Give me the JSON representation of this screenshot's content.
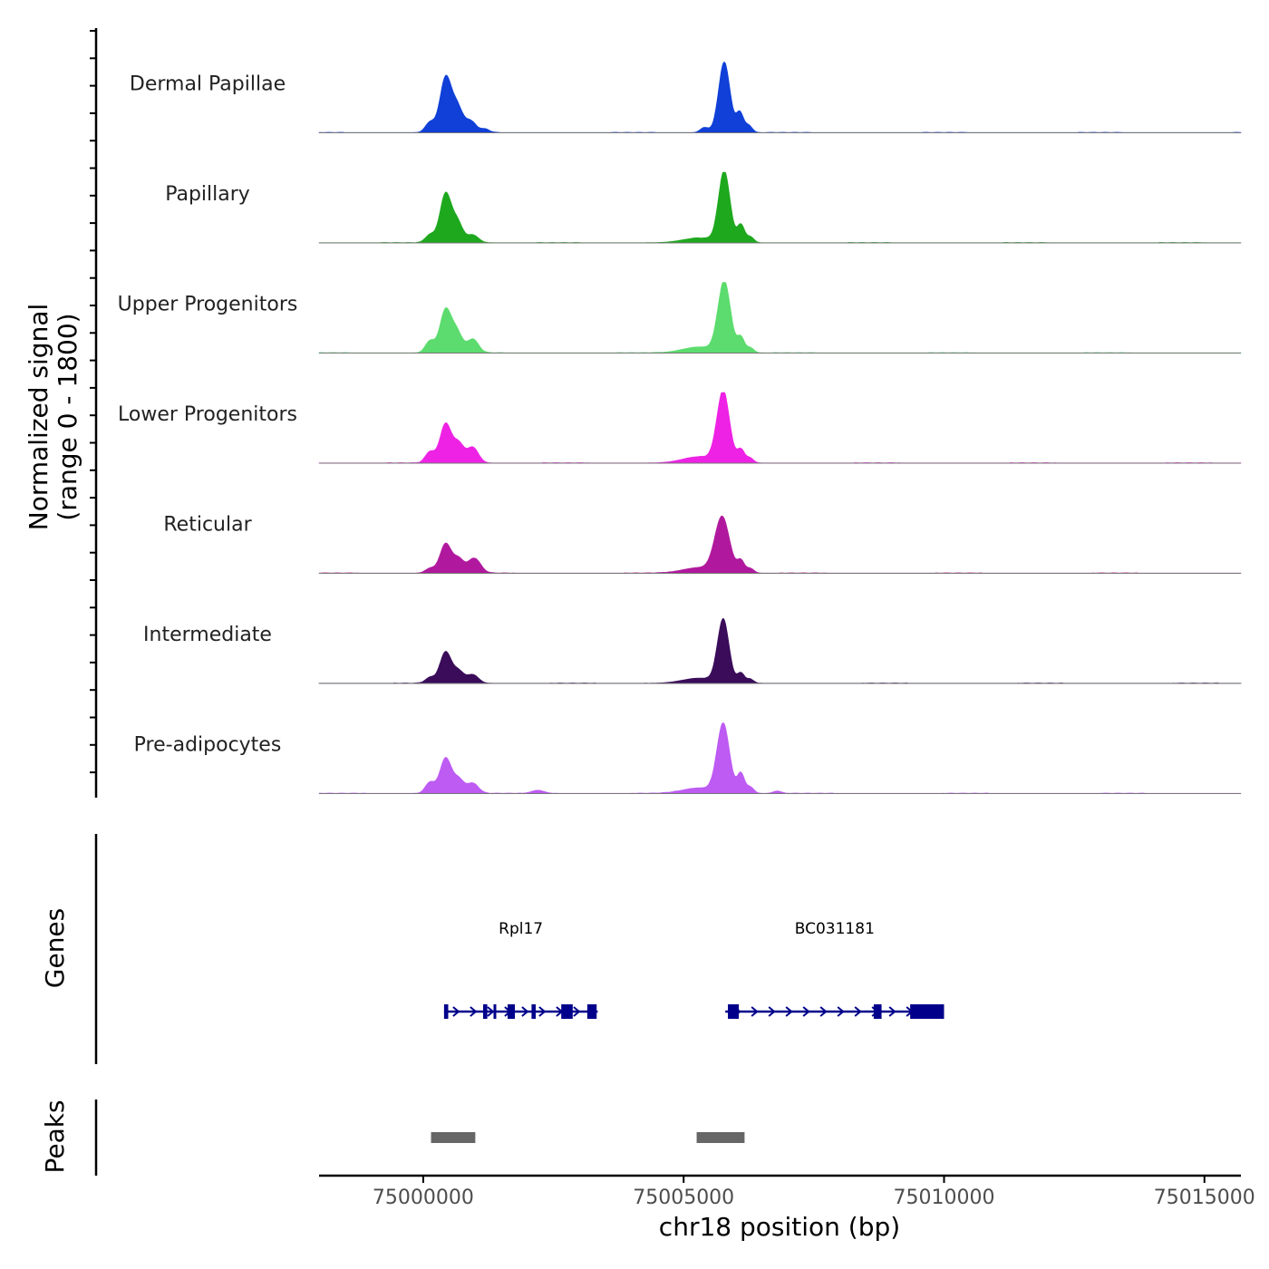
{
  "chart_data": {
    "type": "area",
    "title": "",
    "chromosome": "chr18",
    "xlabel": "chr18 position (bp)",
    "ylabel": "Normalized signal",
    "ylabel_sub": "(range 0 - 1800)",
    "ylim": [
      0,
      1800
    ],
    "xlim": [
      74998000,
      75015700
    ],
    "x_ticks": [
      {
        "value": 75000000,
        "label": "75000000"
      },
      {
        "value": 75005000,
        "label": "75005000"
      },
      {
        "value": 75010000,
        "label": "75010000"
      },
      {
        "value": 75015000,
        "label": "75015000"
      }
    ],
    "series": [
      {
        "name": "Dermal Papillae",
        "color": "#1040d8",
        "peaks": [
          [
            75000130,
            90,
            260
          ],
          [
            75000430,
            110,
            1400
          ],
          [
            75000650,
            100,
            600
          ],
          [
            75000900,
            120,
            300
          ],
          [
            75001200,
            80,
            80
          ],
          [
            75005400,
            80,
            130
          ],
          [
            75005780,
            110,
            1800
          ],
          [
            75006080,
            70,
            500
          ],
          [
            75006250,
            70,
            180
          ]
        ]
      },
      {
        "name": "Papillary",
        "color": "#1ea81e",
        "peaks": [
          [
            75000130,
            90,
            200
          ],
          [
            75000430,
            110,
            1250
          ],
          [
            75000660,
            100,
            500
          ],
          [
            75000950,
            110,
            200
          ],
          [
            75005300,
            320,
            120
          ],
          [
            75005780,
            110,
            1800
          ],
          [
            75006100,
            70,
            450
          ],
          [
            75006280,
            70,
            150
          ]
        ]
      },
      {
        "name": "Upper Progenitors",
        "color": "#5cdc6e",
        "peaks": [
          [
            75000130,
            90,
            300
          ],
          [
            75000430,
            110,
            1100
          ],
          [
            75000650,
            100,
            500
          ],
          [
            75000950,
            110,
            350
          ],
          [
            75005300,
            320,
            150
          ],
          [
            75005780,
            120,
            1800
          ],
          [
            75006100,
            70,
            380
          ],
          [
            75006280,
            70,
            130
          ]
        ]
      },
      {
        "name": "Lower Progenitors",
        "color": "#ee22e4",
        "peaks": [
          [
            75000130,
            90,
            280
          ],
          [
            75000430,
            110,
            1000
          ],
          [
            75000680,
            100,
            480
          ],
          [
            75000950,
            110,
            400
          ],
          [
            75005300,
            320,
            160
          ],
          [
            75005760,
            120,
            1800
          ],
          [
            75006100,
            70,
            330
          ],
          [
            75006270,
            70,
            130
          ]
        ]
      },
      {
        "name": "Reticular",
        "color": "#b0199e",
        "peaks": [
          [
            75000130,
            90,
            120
          ],
          [
            75000430,
            110,
            750
          ],
          [
            75000680,
            100,
            350
          ],
          [
            75000980,
            120,
            380
          ],
          [
            75005300,
            320,
            140
          ],
          [
            75005740,
            140,
            1400
          ],
          [
            75006100,
            70,
            300
          ],
          [
            75006280,
            70,
            120
          ]
        ]
      },
      {
        "name": "Intermediate",
        "color": "#3a0c5a",
        "peaks": [
          [
            75000130,
            90,
            140
          ],
          [
            75000430,
            110,
            800
          ],
          [
            75000680,
            100,
            300
          ],
          [
            75000950,
            110,
            220
          ],
          [
            75005300,
            320,
            130
          ],
          [
            75005760,
            110,
            1600
          ],
          [
            75006100,
            70,
            250
          ],
          [
            75006280,
            70,
            100
          ]
        ]
      },
      {
        "name": "Pre-adipocytes",
        "color": "#bd5bf3",
        "peaks": [
          [
            75000130,
            90,
            280
          ],
          [
            75000430,
            110,
            900
          ],
          [
            75000680,
            100,
            350
          ],
          [
            75000950,
            110,
            260
          ],
          [
            75002200,
            120,
            80
          ],
          [
            75005300,
            320,
            140
          ],
          [
            75005760,
            120,
            1750
          ],
          [
            75006100,
            70,
            500
          ],
          [
            75006280,
            70,
            160
          ],
          [
            75006800,
            80,
            60
          ]
        ]
      }
    ],
    "genes_track": {
      "label": "Genes",
      "color": "#00008b",
      "genes": [
        {
          "name": "Rpl17",
          "start": 75000400,
          "end": 75003350,
          "strand": "+",
          "exons": [
            [
              75000400,
              75000480
            ],
            [
              75001150,
              75001230
            ],
            [
              75001350,
              75001400
            ],
            [
              75001620,
              75001760
            ],
            [
              75002080,
              75002160
            ],
            [
              75002650,
              75002870
            ],
            [
              75003150,
              75003330
            ]
          ]
        },
        {
          "name": "BC031181",
          "start": 75005800,
          "end": 75010000,
          "strand": "+",
          "exons": [
            [
              75005850,
              75006060
            ],
            [
              75008650,
              75008800
            ],
            [
              75009350,
              75010000
            ]
          ]
        }
      ]
    },
    "peaks_track": {
      "label": "Peaks",
      "color": "#666666",
      "peaks": [
        [
          75000150,
          75001000
        ],
        [
          75005250,
          75006170
        ]
      ]
    }
  }
}
